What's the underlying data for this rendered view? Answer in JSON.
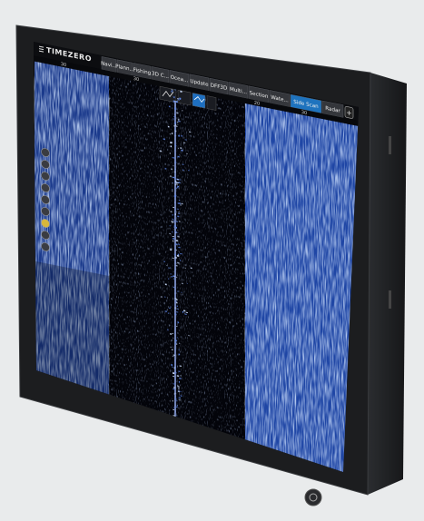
{
  "brand": "TIMEZERO",
  "tabs": [
    "Navi...",
    "Plann...",
    "Fishing",
    "3D C...",
    "Ocea...",
    "Update",
    "DFF3D",
    "Multi...",
    "Section",
    "Wate...",
    "Side Scan",
    "Radar"
  ],
  "scale_labels": [
    "30",
    "30",
    "20",
    "30"
  ]
}
